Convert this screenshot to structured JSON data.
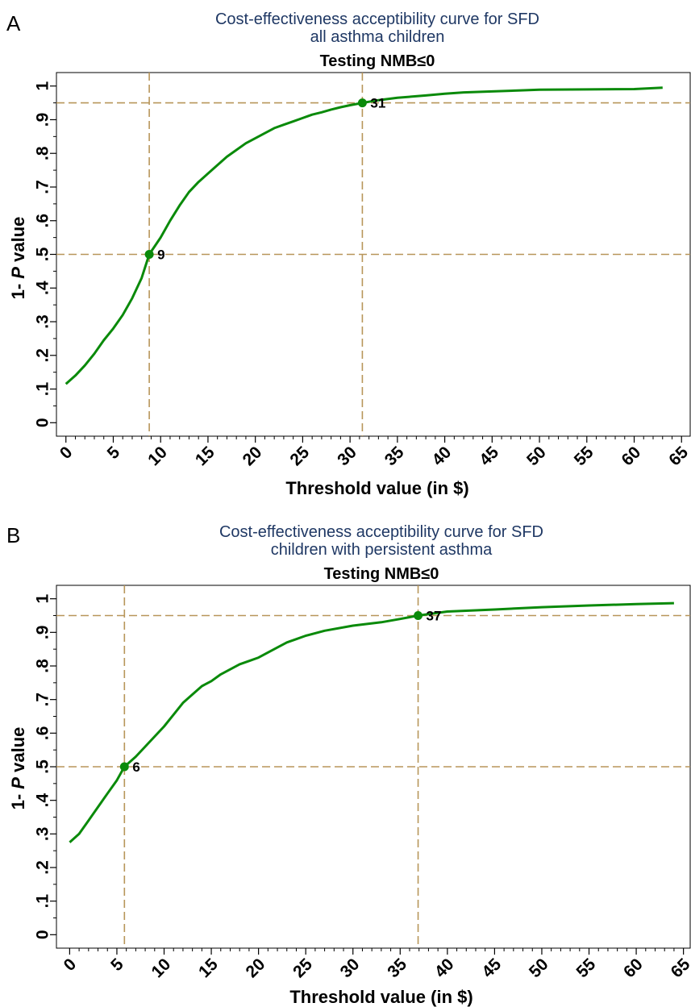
{
  "colors": {
    "curve": "#0a8a0a",
    "refline": "#b8965a",
    "title": "#1f3864",
    "frame": "#000000"
  },
  "chart_data": [
    {
      "type": "line",
      "panel_label": "A",
      "title": "Cost-effectiveness acceptibility curve for SFD",
      "title_line2": "all asthma children",
      "subtitle": "Testing NMB≤0",
      "xlabel": "Threshold value (in $)",
      "ylabel_prefix": "1- ",
      "ylabel_italic": "P",
      "ylabel_suffix": " value",
      "xlim": [
        -1,
        66
      ],
      "ylim": [
        -0.04,
        1.04
      ],
      "xticks": [
        0,
        5,
        10,
        15,
        20,
        25,
        30,
        35,
        40,
        45,
        50,
        55,
        60,
        65
      ],
      "yticks": [
        0,
        0.1,
        0.2,
        0.3,
        0.4,
        0.5,
        0.6,
        0.7,
        0.8,
        0.9,
        1
      ],
      "ytick_labels": [
        "0",
        ".1",
        ".2",
        ".3",
        ".4",
        ".5",
        ".6",
        ".7",
        ".8",
        ".9",
        "1"
      ],
      "hlines": [
        0.5,
        0.95
      ],
      "vlines": [
        8.8,
        31.3
      ],
      "series": [
        {
          "x": [
            0,
            1,
            2,
            3,
            4,
            5,
            6,
            7,
            8,
            8.8,
            10,
            11,
            12,
            13,
            14,
            15,
            16,
            17,
            18,
            19,
            20,
            21,
            22,
            23,
            24,
            25,
            26,
            27,
            28,
            29,
            30,
            31.3,
            33,
            35,
            38,
            40,
            42,
            45,
            48,
            50,
            55,
            60,
            63
          ],
          "y": [
            0.115,
            0.14,
            0.17,
            0.205,
            0.245,
            0.28,
            0.32,
            0.37,
            0.43,
            0.5,
            0.55,
            0.6,
            0.645,
            0.685,
            0.715,
            0.74,
            0.765,
            0.79,
            0.81,
            0.83,
            0.845,
            0.86,
            0.875,
            0.885,
            0.895,
            0.905,
            0.915,
            0.922,
            0.93,
            0.937,
            0.943,
            0.95,
            0.958,
            0.965,
            0.972,
            0.977,
            0.981,
            0.984,
            0.987,
            0.989,
            0.99,
            0.991,
            0.995
          ]
        }
      ],
      "points": [
        {
          "x": 8.8,
          "y": 0.5,
          "label": "9"
        },
        {
          "x": 31.3,
          "y": 0.95,
          "label": "31"
        }
      ]
    },
    {
      "type": "line",
      "panel_label": "B",
      "title": "Cost-effectiveness acceptibility curve for SFD",
      "title_line2": "children with persistent asthma",
      "subtitle": "Testing NMB≤0",
      "xlabel": "Threshold value (in $)",
      "ylabel_prefix": "1- ",
      "ylabel_italic": "P",
      "ylabel_suffix": " value",
      "xlim": [
        -1.4,
        65.8
      ],
      "ylim": [
        -0.04,
        1.04
      ],
      "xticks": [
        0,
        5,
        10,
        15,
        20,
        25,
        30,
        35,
        40,
        45,
        50,
        55,
        60,
        65
      ],
      "yticks": [
        0,
        0.1,
        0.2,
        0.3,
        0.4,
        0.5,
        0.6,
        0.7,
        0.8,
        0.9,
        1
      ],
      "ytick_labels": [
        "0",
        ".1",
        ".2",
        ".3",
        ".4",
        ".5",
        ".6",
        ".7",
        ".8",
        ".9",
        "1"
      ],
      "hlines": [
        0.5,
        0.95
      ],
      "vlines": [
        5.8,
        36.9
      ],
      "series": [
        {
          "x": [
            0,
            1,
            2,
            3,
            4,
            5,
            5.8,
            7,
            8,
            9,
            10,
            11,
            12,
            13,
            14,
            15,
            16,
            17,
            18,
            19,
            20,
            21,
            22,
            23,
            24,
            25,
            27,
            30,
            33,
            35,
            36.9,
            40,
            45,
            50,
            55,
            60,
            64
          ],
          "y": [
            0.275,
            0.3,
            0.34,
            0.38,
            0.42,
            0.46,
            0.5,
            0.53,
            0.56,
            0.59,
            0.62,
            0.655,
            0.69,
            0.715,
            0.74,
            0.755,
            0.775,
            0.79,
            0.805,
            0.815,
            0.825,
            0.84,
            0.855,
            0.87,
            0.88,
            0.89,
            0.905,
            0.92,
            0.93,
            0.94,
            0.95,
            0.962,
            0.968,
            0.975,
            0.98,
            0.984,
            0.987
          ]
        }
      ],
      "points": [
        {
          "x": 5.8,
          "y": 0.5,
          "label": "6"
        },
        {
          "x": 36.9,
          "y": 0.95,
          "label": "37"
        }
      ]
    }
  ]
}
